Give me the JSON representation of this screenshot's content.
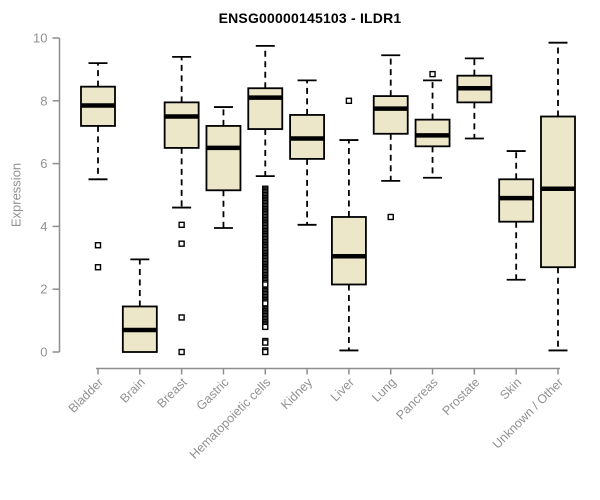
{
  "chart_data": {
    "type": "boxplot",
    "title": "ENSG00000145103 - ILDR1",
    "ylabel": "Expression",
    "xlabel": "",
    "ylim": [
      0,
      10
    ],
    "yticks": [
      0,
      2,
      4,
      6,
      8,
      10
    ],
    "grid": false,
    "legend": null,
    "categories": [
      "Bladder",
      "Brain",
      "Breast",
      "Gastric",
      "Hematopoietic cells",
      "Kidney",
      "Liver",
      "Lung",
      "Pancreas",
      "Prostate",
      "Skin",
      "Unknown / Other"
    ],
    "boxes": [
      {
        "category": "Bladder",
        "whisker_low": 5.5,
        "q1": 7.2,
        "median": 7.85,
        "q3": 8.45,
        "whisker_high": 9.2,
        "outliers": [
          3.4,
          2.7
        ]
      },
      {
        "category": "Brain",
        "whisker_low": 0,
        "q1": 0,
        "median": 0.7,
        "q3": 1.45,
        "whisker_high": 2.95,
        "outliers": []
      },
      {
        "category": "Breast",
        "whisker_low": 4.6,
        "q1": 6.5,
        "median": 7.5,
        "q3": 7.95,
        "whisker_high": 9.4,
        "outliers": [
          4.05,
          3.45,
          1.1,
          0
        ]
      },
      {
        "category": "Gastric",
        "whisker_low": 3.95,
        "q1": 5.15,
        "median": 6.5,
        "q3": 7.2,
        "whisker_high": 7.8,
        "outliers": []
      },
      {
        "category": "Hematopoietic cells",
        "whisker_low": 5.6,
        "q1": 7.1,
        "median": 8.1,
        "q3": 8.4,
        "whisker_high": 9.75,
        "outliers": [
          5.2,
          5.15,
          5.1,
          5.05,
          5,
          4.95,
          4.9,
          4.85,
          4.8,
          4.75,
          4.7,
          4.65,
          4.6,
          4.55,
          4.5,
          4.45,
          4.4,
          4.35,
          4.3,
          4.25,
          4.2,
          4.15,
          4.1,
          4.05,
          4,
          3.95,
          3.9,
          3.85,
          3.8,
          3.75,
          3.7,
          3.65,
          3.6,
          3.55,
          3.5,
          3.45,
          3.4,
          3.35,
          3.3,
          3.25,
          3.2,
          3.15,
          3.1,
          3.05,
          3,
          2.95,
          2.9,
          2.85,
          2.8,
          2.75,
          2.7,
          2.65,
          2.6,
          2.55,
          2.5,
          2.45,
          2.4,
          2.35,
          2.3,
          2.25,
          2.2,
          2.15,
          1.95,
          1.9,
          1.85,
          1.8,
          1.75,
          1.7,
          1.65,
          1.6,
          1.55,
          1.35,
          1.3,
          1.25,
          1.2,
          1.15,
          1.1,
          1.05,
          1,
          0.95,
          0.9,
          0.85,
          0.8,
          0.35,
          0.3,
          0.05,
          0
        ]
      },
      {
        "category": "Kidney",
        "whisker_low": 4.05,
        "q1": 6.15,
        "median": 6.8,
        "q3": 7.55,
        "whisker_high": 8.65,
        "outliers": []
      },
      {
        "category": "Liver",
        "whisker_low": 0.05,
        "q1": 2.15,
        "median": 3.05,
        "q3": 4.3,
        "whisker_high": 6.75,
        "outliers": [
          8.0
        ]
      },
      {
        "category": "Lung",
        "whisker_low": 5.45,
        "q1": 6.95,
        "median": 7.75,
        "q3": 8.15,
        "whisker_high": 9.45,
        "outliers": [
          4.3
        ]
      },
      {
        "category": "Pancreas",
        "whisker_low": 5.55,
        "q1": 6.55,
        "median": 6.9,
        "q3": 7.4,
        "whisker_high": 8.65,
        "outliers": [
          8.85
        ]
      },
      {
        "category": "Prostate",
        "whisker_low": 6.8,
        "q1": 7.95,
        "median": 8.4,
        "q3": 8.8,
        "whisker_high": 9.35,
        "outliers": []
      },
      {
        "category": "Skin",
        "whisker_low": 2.3,
        "q1": 4.15,
        "median": 4.9,
        "q3": 5.5,
        "whisker_high": 6.4,
        "outliers": []
      },
      {
        "category": "Unknown / Other",
        "whisker_low": 0.05,
        "q1": 2.7,
        "median": 5.2,
        "q3": 7.5,
        "whisker_high": 9.85,
        "outliers": []
      }
    ],
    "colors": {
      "box_fill": "#EDE7C9",
      "box_border": "#000000",
      "median": "#000000",
      "whisker": "#000000",
      "outlier": "#000000",
      "axis": "#8E8E8E",
      "tick_label": "#919191",
      "title": "#000000",
      "background": "#FFFFFF"
    }
  }
}
